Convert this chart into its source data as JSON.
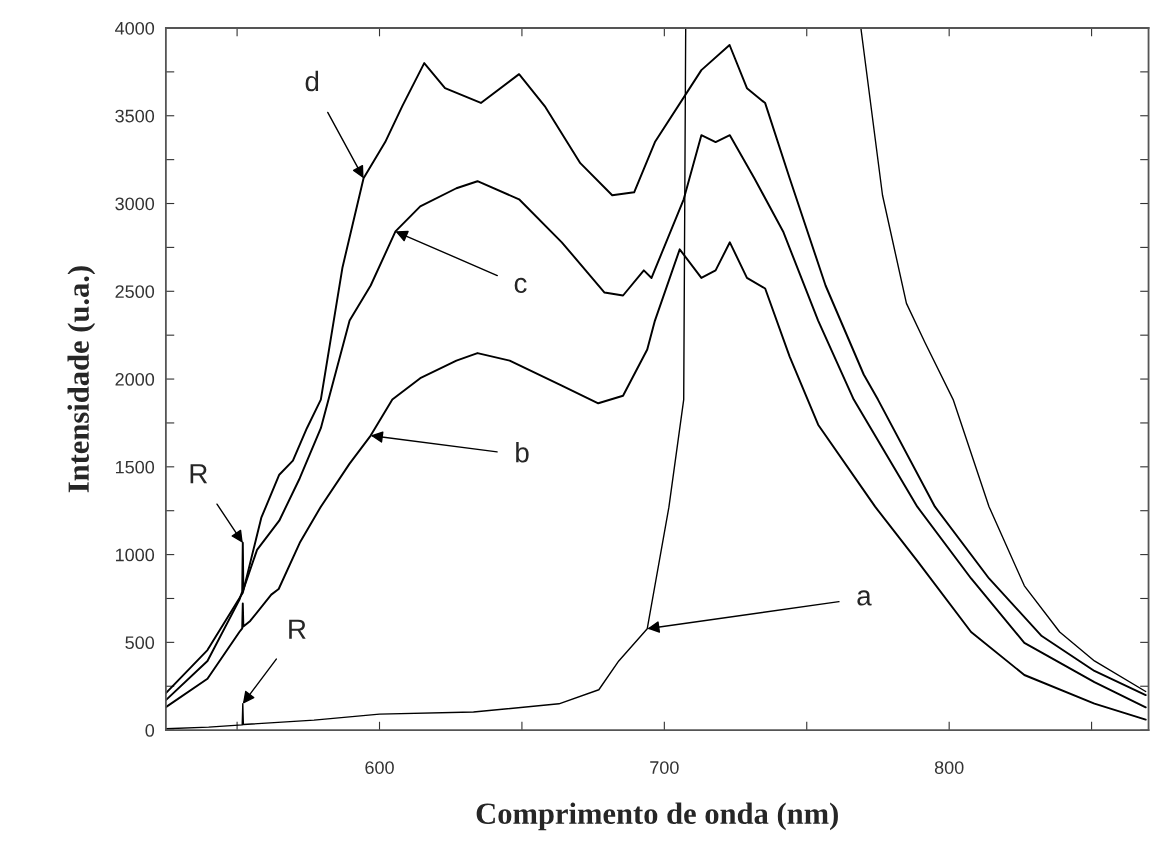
{
  "chart_data": {
    "type": "line",
    "xlabel": "Comprimento de onda (nm)",
    "ylabel": "Intensidade (u.a.)",
    "xlim": [
      525,
      870
    ],
    "ylim": [
      0,
      4000
    ],
    "xticks": [
      {
        "value": 550,
        "label": null
      },
      600,
      {
        "value": 650,
        "label": null
      },
      700,
      {
        "value": 750,
        "label": null
      },
      800,
      {
        "value": 850,
        "label": null
      }
    ],
    "yticks": [
      0,
      {
        "value": 250,
        "label": null
      },
      500,
      {
        "value": 750,
        "label": null
      },
      1000,
      {
        "value": 1250,
        "label": null
      },
      1500,
      {
        "value": 1750,
        "label": null
      },
      2000,
      {
        "value": 2250,
        "label": null
      },
      2500,
      {
        "value": 2750,
        "label": null
      },
      3000,
      {
        "value": 3250,
        "label": null
      },
      3500,
      {
        "value": 3750,
        "label": null
      },
      4000
    ],
    "grid": false,
    "legend": false,
    "marker": "none",
    "line_style": "solid",
    "series": [
      {
        "color": "#000000",
        "x": [
          525,
          540,
          551.8,
          552,
          552.2,
          577,
          600,
          633,
          663,
          677,
          684,
          694,
          701.6,
          706.8,
          707.5,
          740,
          769,
          776.6,
          785,
          791.5,
          801.4,
          814,
          826.4,
          838.8,
          851,
          869
        ],
        "values": [
          8,
          17,
          30,
          150,
          32,
          57,
          91,
          103,
          150,
          230,
          394,
          578,
          1270,
          1883,
          4000,
          null,
          4000,
          3047,
          2431,
          2208,
          1883,
          1273,
          822,
          559,
          394,
          220
        ]
      },
      {
        "color": "#000000",
        "x": [
          525,
          539.6,
          550.8,
          551.8,
          552,
          552.2,
          554.6,
          562,
          564.6,
          572,
          579.4,
          589.5,
          596.9,
          604.5,
          614.3,
          627,
          634.4,
          645.7,
          664,
          676.8,
          685.5,
          694,
          696.7,
          705.4,
          713,
          718,
          723,
          729,
          735.4,
          744,
          754,
          774,
          788.8,
          807.7,
          826.4,
          851,
          869
        ],
        "values": [
          131,
          293,
          559,
          580,
          721,
          590,
          622,
          772,
          804,
          1067,
          1273,
          1518,
          1678,
          1883,
          2005,
          2105,
          2148,
          2105,
          1963,
          1862,
          1905,
          2168,
          2333,
          2739,
          2576,
          2619,
          2779,
          2576,
          2516,
          2128,
          1740,
          1273,
          964,
          559,
          314,
          151,
          60
        ]
      },
      {
        "color": "#000000",
        "x": [
          525,
          539.6,
          550.8,
          551.8,
          552,
          552.2,
          557,
          564.8,
          572,
          579.4,
          589.5,
          596.9,
          605.6,
          614.3,
          627,
          634.4,
          649,
          664,
          679,
          685.5,
          692.8,
          695.5,
          706.8,
          713,
          718,
          723,
          731.6,
          741.7,
          754,
          766.5,
          788.8,
          807.7,
          826.4,
          851,
          869
        ],
        "values": [
          171,
          394,
          742,
          790,
          1067,
          800,
          1027,
          1193,
          1435,
          1720,
          2333,
          2533,
          2841,
          2984,
          3087,
          3127,
          3024,
          2779,
          2493,
          2476,
          2619,
          2576,
          3024,
          3389,
          3350,
          3389,
          3144,
          2841,
          2333,
          1883,
          1273,
          864,
          497,
          274,
          130
        ]
      },
      {
        "color": "#000000",
        "x": [
          525,
          539.6,
          552,
          558.5,
          564.8,
          569.6,
          574.5,
          579.4,
          587,
          594.4,
          602,
          608,
          615.7,
          623,
          635.6,
          649,
          658,
          670.5,
          681.7,
          689.4,
          696.7,
          713,
          722.9,
          729,
          735.4,
          744,
          756.6,
          770,
          775,
          795,
          814,
          832.5,
          851,
          869
        ],
        "values": [
          211,
          456,
          782,
          1210,
          1455,
          1535,
          1720,
          1883,
          2636,
          3144,
          3350,
          3555,
          3800,
          3657,
          3573,
          3737,
          3555,
          3230,
          3047,
          3064,
          3350,
          3760,
          3903,
          3657,
          3572,
          3144,
          2533,
          2026,
          1883,
          1273,
          864,
          536,
          337,
          200
        ]
      }
    ],
    "annotations": [
      {
        "text": "d",
        "x": 594.4,
        "y": 3144
      },
      {
        "text": "c",
        "x": 605.6,
        "y": 2841
      },
      {
        "text": "b",
        "x": 596.9,
        "y": 1678
      },
      {
        "text": "a",
        "x": 694,
        "y": 578
      },
      {
        "text": "R",
        "x": 552,
        "y": 1067
      },
      {
        "text": "R",
        "x": 552,
        "y": 150
      }
    ]
  }
}
